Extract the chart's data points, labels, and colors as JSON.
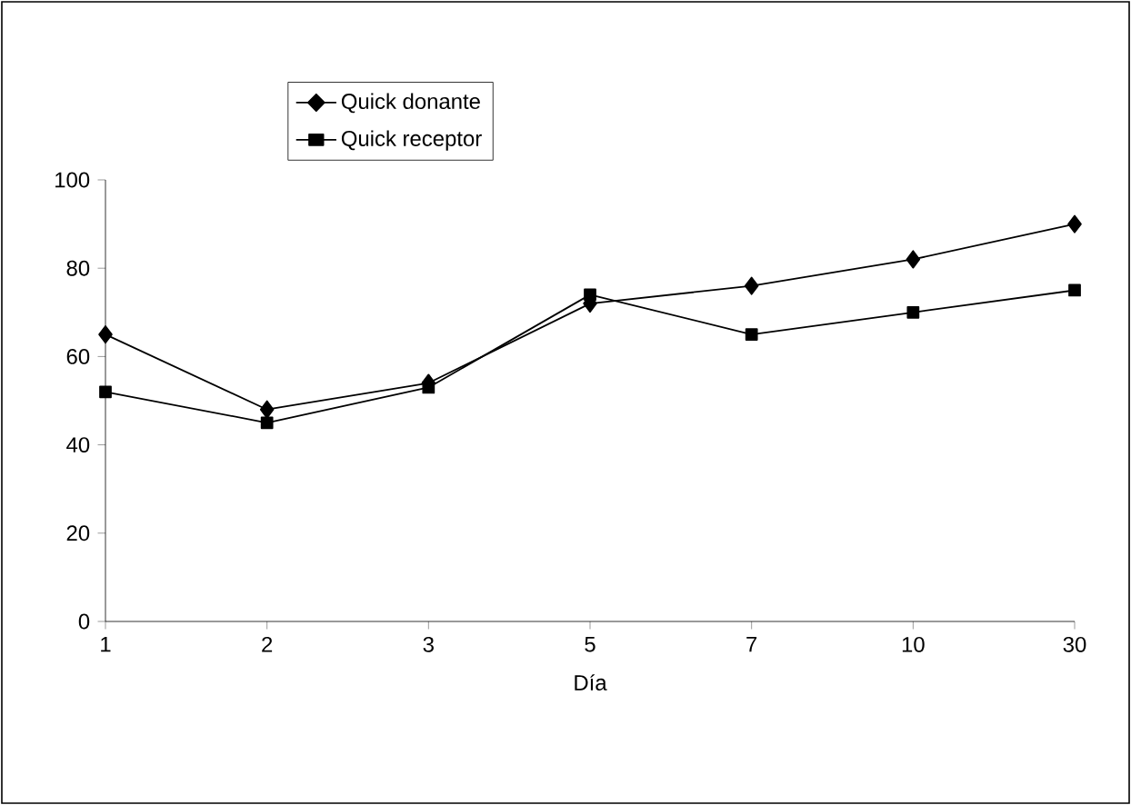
{
  "chart_data": {
    "type": "line",
    "xlabel": "Día",
    "categories": [
      "1",
      "2",
      "3",
      "5",
      "7",
      "10",
      "30"
    ],
    "series": [
      {
        "name": "Quick donante",
        "color": "#000000",
        "marker": "diamond",
        "values": [
          65,
          48,
          54,
          72,
          76,
          82,
          90
        ]
      },
      {
        "name": "Quick receptor",
        "color": "#000000",
        "marker": "square",
        "values": [
          52,
          45,
          53,
          74,
          65,
          70,
          75
        ]
      }
    ],
    "ylim": [
      0,
      100
    ],
    "yticks": [
      0,
      20,
      40,
      60,
      80,
      100
    ],
    "grid": false,
    "legend": "top left",
    "line_style": "solid"
  }
}
